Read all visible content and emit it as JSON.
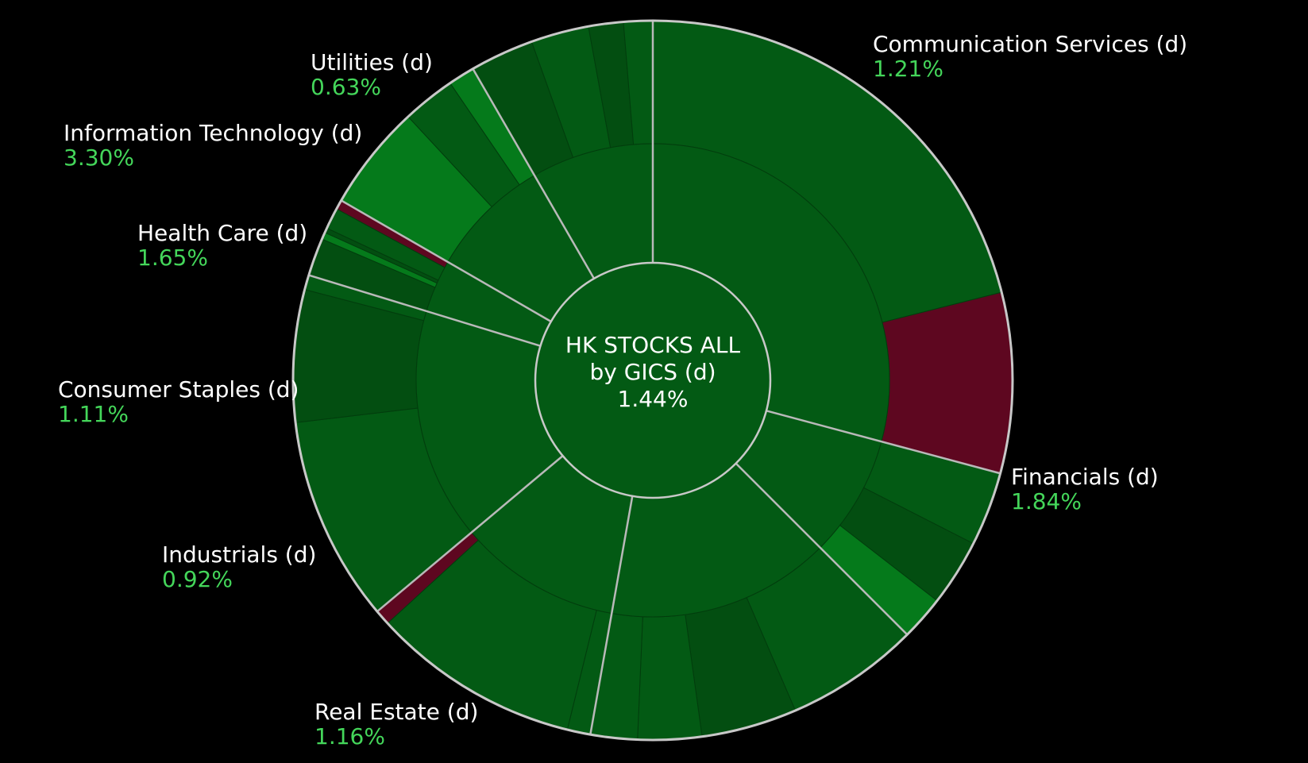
{
  "chart_data": {
    "type": "sunburst",
    "title": "HK STOCKS ALL by GICS (d)",
    "center": {
      "line1": "HK STOCKS ALL",
      "line2": "by GICS (d)",
      "value": "1.44%"
    },
    "colors": {
      "positive": "#035a14",
      "positive_dark": "#034e11",
      "positive_bright": "#057a1b",
      "negative": "#5e0720",
      "separator": "#b9b9b9",
      "value_text": "#44d65a"
    },
    "sectors": [
      {
        "name": "Communication Services (d)",
        "change": "1.21%",
        "children": [
          {
            "weight": 13,
            "tone": "positive"
          },
          {
            "weight": 5,
            "tone": "negative"
          }
        ]
      },
      {
        "name": "Financials (d)",
        "change": "1.84%",
        "children": [
          {
            "weight": 6,
            "tone": "positive"
          },
          {
            "weight": 5.4,
            "tone": "positive_dark"
          },
          {
            "weight": 3.6,
            "tone": "positive_bright"
          }
        ]
      },
      {
        "name": "Real Estate (d)",
        "change": "1.16%",
        "children": [
          {
            "weight": 6.3,
            "tone": "positive"
          },
          {
            "weight": 4.5,
            "tone": "positive_dark"
          },
          {
            "weight": 3,
            "tone": "positive"
          },
          {
            "weight": 2.2,
            "tone": "positive"
          }
        ]
      },
      {
        "name": "Industrials (d)",
        "change": "0.92%",
        "children": [
          {
            "weight": 1.5,
            "tone": "positive"
          },
          {
            "weight": 13.5,
            "tone": "positive"
          },
          {
            "weight": 1,
            "tone": "negative"
          }
        ]
      },
      {
        "name": "Consumer Staples (d)",
        "change": "1.11%",
        "children": [
          {
            "weight": 7,
            "tone": "positive"
          },
          {
            "weight": 4.5,
            "tone": "positive_dark"
          },
          {
            "weight": 0.5,
            "tone": "positive"
          }
        ]
      },
      {
        "name": "Health Care (d)",
        "change": "1.65%",
        "children": [
          {
            "weight": 8,
            "tone": "positive_dark"
          },
          {
            "weight": 1.5,
            "tone": "positive_bright"
          },
          {
            "weight": 1,
            "tone": "positive_dark"
          },
          {
            "weight": 4.5,
            "tone": "positive"
          },
          {
            "weight": 2,
            "tone": "negative"
          }
        ]
      },
      {
        "name": "Information Technology (d)",
        "change": "3.30%",
        "children": [
          {
            "weight": 4,
            "tone": "positive_bright"
          },
          {
            "weight": 2,
            "tone": "positive"
          },
          {
            "weight": 1,
            "tone": "positive_bright"
          }
        ]
      },
      {
        "name": "Utilities (d)",
        "change": "0.63%",
        "children": [
          {
            "weight": 5.5,
            "tone": "positive_dark"
          },
          {
            "weight": 5,
            "tone": "positive"
          },
          {
            "weight": 3,
            "tone": "positive_dark"
          },
          {
            "weight": 2.5,
            "tone": "positive"
          }
        ]
      }
    ]
  }
}
